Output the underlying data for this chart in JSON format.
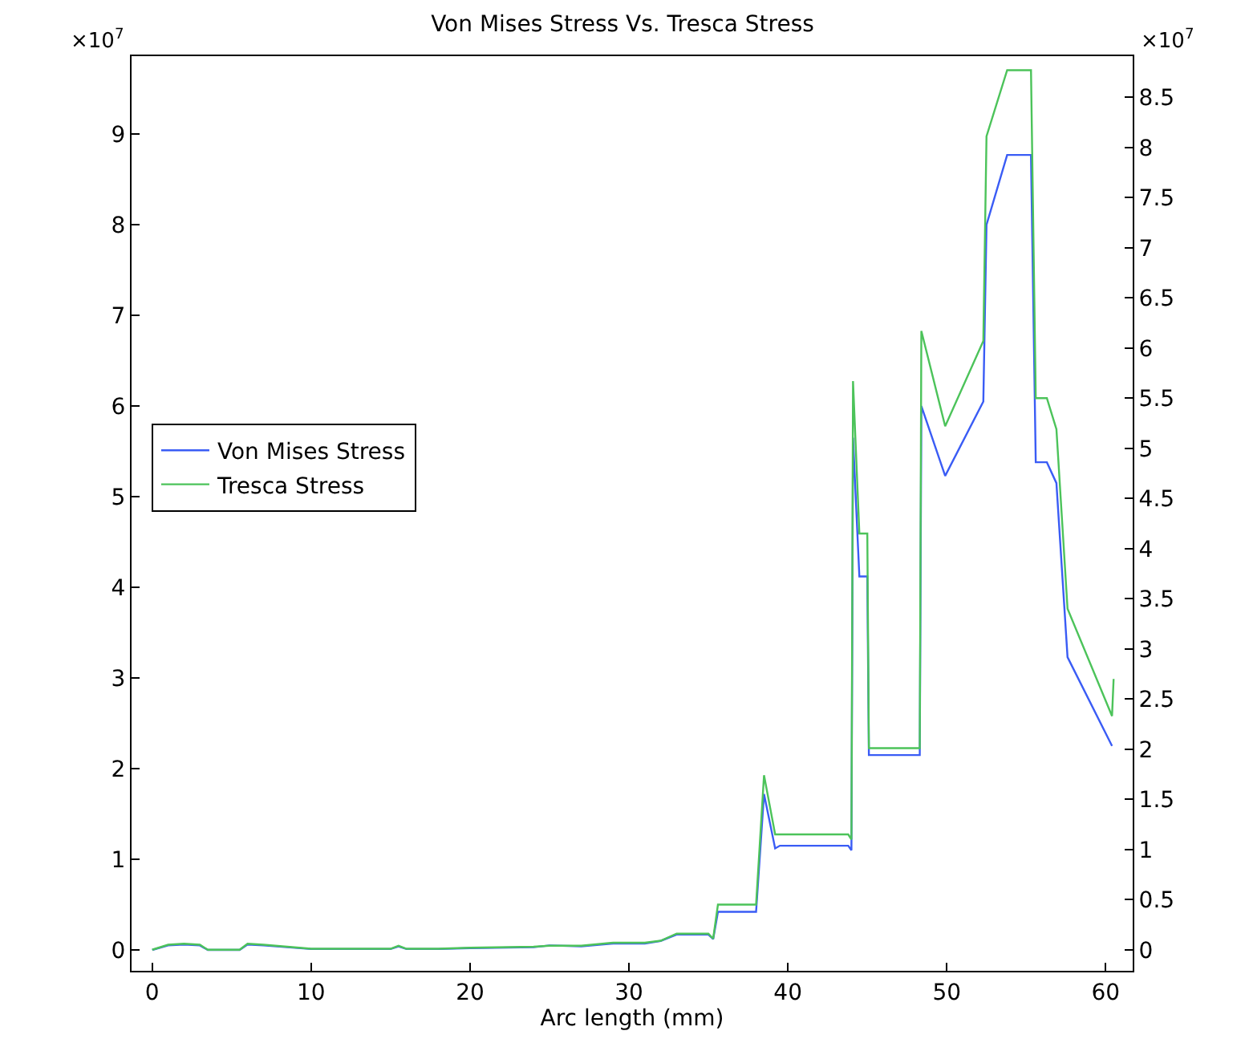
{
  "chart_data": {
    "type": "line",
    "title": "Von Mises Stress Vs. Tresca Stress",
    "xlabel": "Arc length (mm)",
    "annotations": [
      "×10$^{7}$",
      "×10$^{7}$"
    ],
    "xlim": [
      -1.3,
      61.7
    ],
    "xticks": [
      0,
      10,
      20,
      30,
      40,
      50,
      60
    ],
    "ylim": [
      -0.23,
      9.86
    ],
    "yticks": [
      0,
      1,
      2,
      3,
      4,
      5,
      6,
      7,
      8,
      9
    ],
    "y2lim": [
      -0.21,
      8.91
    ],
    "y2ticks": [
      0,
      0.5,
      1,
      1.5,
      2,
      2.5,
      3,
      3.5,
      4,
      4.5,
      5,
      5.5,
      6,
      6.5,
      7,
      7.5,
      8,
      8.5
    ],
    "legend": "left",
    "marker": "none",
    "line_style": "solid",
    "series": [
      {
        "name": "Von Mises Stress",
        "color": "#3a5cf5",
        "x": [
          0,
          1,
          2,
          3,
          3.5,
          5.5,
          6,
          7,
          10,
          15,
          15.5,
          16,
          18,
          20,
          24,
          25,
          27,
          29,
          31,
          32,
          33,
          35,
          35.3,
          35.6,
          38,
          38.5,
          39.2,
          39.5,
          43.8,
          44,
          44.1,
          44.5,
          45,
          45.1,
          48.3,
          48.4,
          49.9,
          52.3,
          52.5,
          53.8,
          55.3,
          55.6,
          56.3,
          56.9,
          57.6,
          60.4
        ],
        "values": [
          0,
          0.05,
          0.06,
          0.05,
          0,
          0,
          0.06,
          0.05,
          0.01,
          0.01,
          0.04,
          0.01,
          0.01,
          0.02,
          0.03,
          0.05,
          0.04,
          0.07,
          0.07,
          0.1,
          0.17,
          0.17,
          0.12,
          0.42,
          0.42,
          1.72,
          1.12,
          1.15,
          1.15,
          1.1,
          5.65,
          4.12,
          4.12,
          2.15,
          2.15,
          6.0,
          5.23,
          6.05,
          8.0,
          8.77,
          8.77,
          5.38,
          5.38,
          5.15,
          3.23,
          2.25
        ]
      },
      {
        "name": "Tresca Stress",
        "color": "#4cc35a",
        "axis": "y2",
        "x": [
          0,
          1,
          2,
          3,
          3.5,
          5.5,
          6,
          7,
          10,
          15,
          15.5,
          16,
          18,
          20,
          24,
          25,
          27,
          29,
          31,
          32,
          33,
          35,
          35.3,
          35.6,
          38,
          38.5,
          39.2,
          43.8,
          44,
          44.1,
          44.5,
          45,
          45.1,
          48.3,
          48.4,
          49.9,
          52.3,
          52.5,
          53.8,
          55.3,
          55.6,
          56.3,
          56.9,
          57.6,
          60.4,
          60.5
        ],
        "values": [
          0,
          0.05,
          0.06,
          0.05,
          0,
          0,
          0.06,
          0.05,
          0.01,
          0.01,
          0.04,
          0.01,
          0.01,
          0.02,
          0.03,
          0.04,
          0.04,
          0.07,
          0.07,
          0.09,
          0.16,
          0.16,
          0.11,
          0.45,
          0.45,
          1.74,
          1.15,
          1.15,
          1.1,
          5.67,
          4.15,
          4.15,
          2.01,
          2.01,
          6.17,
          5.22,
          6.07,
          8.11,
          8.77,
          8.77,
          5.5,
          5.5,
          5.19,
          3.4,
          2.33,
          2.7
        ]
      }
    ]
  }
}
